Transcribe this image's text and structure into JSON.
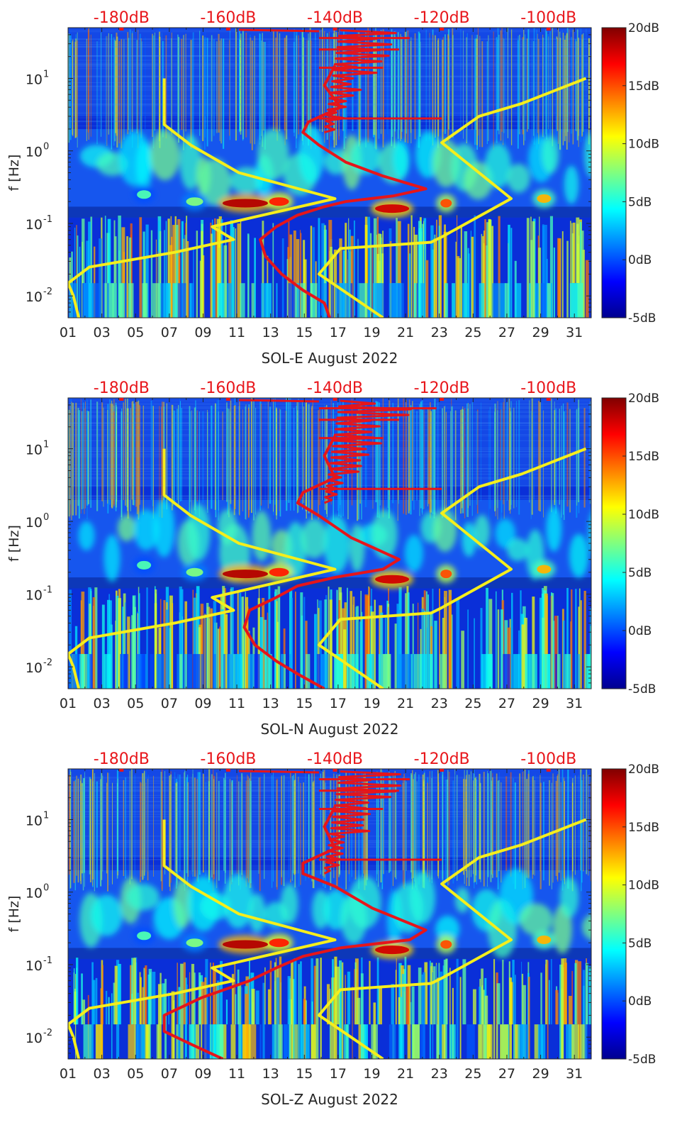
{
  "colors": {
    "noise_red": "#e6151a",
    "noise_yellow": "#f5ee1c",
    "top_label_red": "#e8161b",
    "axis_text": "#262626"
  },
  "chart_data": [
    {
      "type": "heatmap",
      "id": "sol-e",
      "title": "",
      "xlabel": "SOL-E August 2022",
      "ylabel": "f [Hz]",
      "x_range_days": [
        1,
        32
      ],
      "x_ticks": [
        "01",
        "03",
        "05",
        "07",
        "09",
        "11",
        "13",
        "15",
        "17",
        "19",
        "21",
        "23",
        "25",
        "27",
        "29",
        "31"
      ],
      "y_scale": "log",
      "y_range_hz": [
        0.005,
        50
      ],
      "y_ticks": [
        {
          "value": 0.01,
          "base": "10",
          "exp": "-2"
        },
        {
          "value": 0.1,
          "base": "10",
          "exp": "-1"
        },
        {
          "value": 1,
          "base": "10",
          "exp": "0"
        },
        {
          "value": 10,
          "base": "10",
          "exp": "1"
        }
      ],
      "colorbar": {
        "min_db": -5,
        "max_db": 20,
        "ticks": [
          "20dB",
          "15dB",
          "10dB",
          "5dB",
          "0dB",
          "-5dB"
        ]
      },
      "top_axis": {
        "range_db": [
          -190,
          -92
        ],
        "ticks": [
          "-180dB",
          "-160dB",
          "-140dB",
          "-120dB",
          "-100dB"
        ],
        "tick_values": [
          -180,
          -160,
          -140,
          -120,
          -100
        ]
      },
      "series": [
        {
          "name": "PSD red curve",
          "color": "red",
          "x_db": [
            -141,
            -142,
            -146,
            -150,
            -153,
            -154,
            -151,
            -147,
            -142,
            -138,
            -129,
            -123,
            -131,
            -138,
            -143,
            -146,
            -145,
            -139,
            -142,
            -140
          ],
          "f_hz": [
            0.005,
            0.008,
            0.012,
            0.02,
            0.035,
            0.06,
            0.09,
            0.13,
            0.17,
            0.2,
            0.24,
            0.3,
            0.45,
            0.7,
            1.2,
            1.8,
            2.5,
            4,
            8,
            15
          ]
        },
        {
          "name": "Low noise model",
          "color": "yellow",
          "x_db": [
            -188,
            -189,
            -190,
            -186,
            -170,
            -159,
            -163,
            -140,
            -158,
            -167,
            -172,
            -172
          ],
          "f_hz": [
            0.005,
            0.01,
            0.015,
            0.025,
            0.04,
            0.06,
            0.09,
            0.22,
            0.5,
            1.2,
            2.3,
            10
          ]
        },
        {
          "name": "High noise model",
          "color": "yellow",
          "x_db": [
            -131,
            -143,
            -139,
            -122,
            -120,
            -107,
            -120,
            -113,
            -105,
            -93
          ],
          "f_hz": [
            0.005,
            0.02,
            0.045,
            0.055,
            0.065,
            0.22,
            1.3,
            3,
            4.5,
            10
          ]
        }
      ]
    },
    {
      "type": "heatmap",
      "id": "sol-n",
      "title": "",
      "xlabel": "SOL-N August 2022",
      "ylabel": "f [Hz]",
      "x_range_days": [
        1,
        32
      ],
      "x_ticks": [
        "01",
        "03",
        "05",
        "07",
        "09",
        "11",
        "13",
        "15",
        "17",
        "19",
        "21",
        "23",
        "25",
        "27",
        "29",
        "31"
      ],
      "y_scale": "log",
      "y_range_hz": [
        0.005,
        50
      ],
      "y_ticks": [
        {
          "value": 0.01,
          "base": "10",
          "exp": "-2"
        },
        {
          "value": 0.1,
          "base": "10",
          "exp": "-1"
        },
        {
          "value": 1,
          "base": "10",
          "exp": "0"
        },
        {
          "value": 10,
          "base": "10",
          "exp": "1"
        }
      ],
      "colorbar": {
        "min_db": -5,
        "max_db": 20,
        "ticks": [
          "20dB",
          "15dB",
          "10dB",
          "5dB",
          "0dB",
          "-5dB"
        ]
      },
      "top_axis": {
        "range_db": [
          -190,
          -92
        ],
        "ticks": [
          "-180dB",
          "-160dB",
          "-140dB",
          "-120dB",
          "-100dB"
        ],
        "tick_values": [
          -180,
          -160,
          -140,
          -120,
          -100
        ]
      },
      "series": [
        {
          "name": "PSD red curve",
          "color": "red",
          "x_db": [
            -142,
            -147,
            -151,
            -155,
            -157,
            -156,
            -151,
            -147,
            -140,
            -131,
            -128,
            -137,
            -143,
            -147,
            -146,
            -140,
            -142,
            -140
          ],
          "f_hz": [
            0.005,
            0.008,
            0.012,
            0.02,
            0.035,
            0.06,
            0.09,
            0.13,
            0.17,
            0.22,
            0.3,
            0.6,
            1.2,
            1.8,
            2.5,
            4,
            8,
            15
          ]
        },
        {
          "name": "Low noise model",
          "color": "yellow",
          "x_db": [
            -188,
            -189,
            -190,
            -186,
            -170,
            -159,
            -163,
            -140,
            -158,
            -167,
            -172,
            -172
          ],
          "f_hz": [
            0.005,
            0.01,
            0.015,
            0.025,
            0.04,
            0.06,
            0.09,
            0.22,
            0.5,
            1.2,
            2.3,
            10
          ]
        },
        {
          "name": "High noise model",
          "color": "yellow",
          "x_db": [
            -131,
            -143,
            -139,
            -122,
            -120,
            -107,
            -120,
            -113,
            -105,
            -93
          ],
          "f_hz": [
            0.005,
            0.02,
            0.045,
            0.055,
            0.065,
            0.22,
            1.3,
            3,
            4.5,
            10
          ]
        }
      ]
    },
    {
      "type": "heatmap",
      "id": "sol-z",
      "title": "",
      "xlabel": "SOL-Z August 2022",
      "ylabel": "f [Hz]",
      "x_range_days": [
        1,
        32
      ],
      "x_ticks": [
        "01",
        "03",
        "05",
        "07",
        "09",
        "11",
        "13",
        "15",
        "17",
        "19",
        "21",
        "23",
        "25",
        "27",
        "29",
        "31"
      ],
      "y_scale": "log",
      "y_range_hz": [
        0.005,
        50
      ],
      "y_ticks": [
        {
          "value": 0.01,
          "base": "10",
          "exp": "-2"
        },
        {
          "value": 0.1,
          "base": "10",
          "exp": "-1"
        },
        {
          "value": 1,
          "base": "10",
          "exp": "0"
        },
        {
          "value": 10,
          "base": "10",
          "exp": "1"
        }
      ],
      "colorbar": {
        "min_db": -5,
        "max_db": 20,
        "ticks": [
          "20dB",
          "15dB",
          "10dB",
          "5dB",
          "0dB",
          "-5dB"
        ]
      },
      "top_axis": {
        "range_db": [
          -190,
          -92
        ],
        "ticks": [
          "-180dB",
          "-160dB",
          "-140dB",
          "-120dB",
          "-100dB"
        ],
        "tick_values": [
          -180,
          -160,
          -140,
          -120,
          -100
        ]
      },
      "series": [
        {
          "name": "PSD red curve",
          "color": "red",
          "x_db": [
            -161,
            -167,
            -172,
            -172,
            -165,
            -156,
            -151,
            -146,
            -139,
            -126,
            -123,
            -133,
            -140,
            -146,
            -146,
            -140,
            -142,
            -140
          ],
          "f_hz": [
            0.005,
            0.008,
            0.012,
            0.02,
            0.035,
            0.06,
            0.09,
            0.13,
            0.17,
            0.22,
            0.3,
            0.6,
            1.2,
            1.8,
            2.5,
            4,
            8,
            15
          ]
        },
        {
          "name": "Low noise model",
          "color": "yellow",
          "x_db": [
            -188,
            -189,
            -190,
            -186,
            -170,
            -159,
            -163,
            -140,
            -158,
            -167,
            -172,
            -172
          ],
          "f_hz": [
            0.005,
            0.01,
            0.015,
            0.025,
            0.04,
            0.06,
            0.09,
            0.22,
            0.5,
            1.2,
            2.3,
            10
          ]
        },
        {
          "name": "High noise model",
          "color": "yellow",
          "x_db": [
            -131,
            -143,
            -139,
            -122,
            -120,
            -107,
            -120,
            -113,
            -105,
            -93
          ],
          "f_hz": [
            0.005,
            0.02,
            0.045,
            0.055,
            0.065,
            0.22,
            1.3,
            3,
            4.5,
            10
          ]
        }
      ]
    }
  ]
}
